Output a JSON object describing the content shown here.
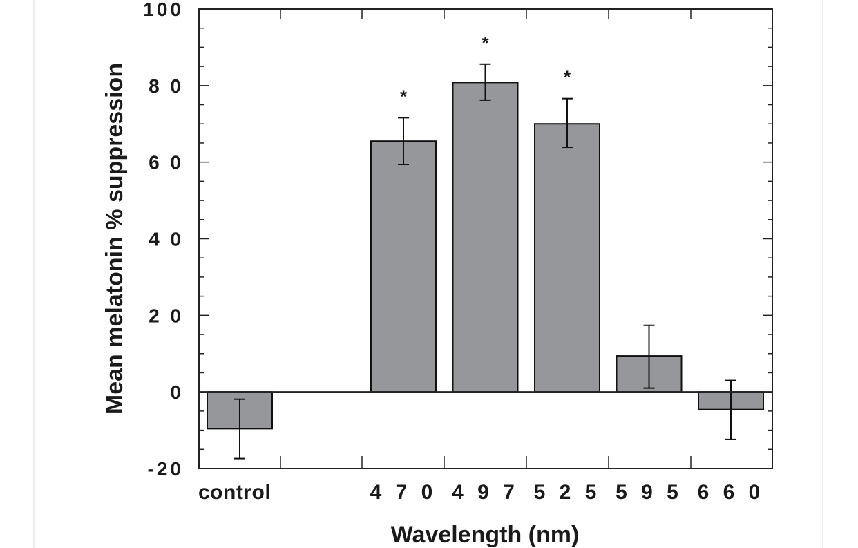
{
  "chart_data": {
    "type": "bar",
    "title": "",
    "xlabel": "Wavelength  (nm)",
    "ylabel": "Mean melatonin % suppression",
    "ylim": [
      -20,
      100
    ],
    "yticks": [
      -20,
      0,
      20,
      40,
      60,
      80,
      100
    ],
    "ytick_labels": [
      "-20",
      "0",
      "2 0",
      "4 0",
      "6 0",
      "8 0",
      "100"
    ],
    "categories": [
      "control",
      "470",
      "497",
      "525",
      "595",
      "660"
    ],
    "category_labels": [
      "control",
      "4 7 0",
      "4 9 7",
      "5 2 5",
      "5 9 5",
      "6 6 0"
    ],
    "values": [
      -9.6,
      65.5,
      80.8,
      70.0,
      9.4,
      -4.6
    ],
    "error_low": [
      -17.4,
      59.4,
      76.2,
      63.9,
      1.0,
      -12.4
    ],
    "error_high": [
      -1.9,
      71.6,
      85.6,
      76.6,
      17.4,
      3.0
    ],
    "significance": [
      "",
      "*",
      "*",
      "*",
      "",
      ""
    ],
    "grid": false,
    "colors": {
      "bar_fill": "#96979b",
      "bar_edge": "#111111",
      "axis": "#222222",
      "frame_edge": "#ececec"
    }
  }
}
